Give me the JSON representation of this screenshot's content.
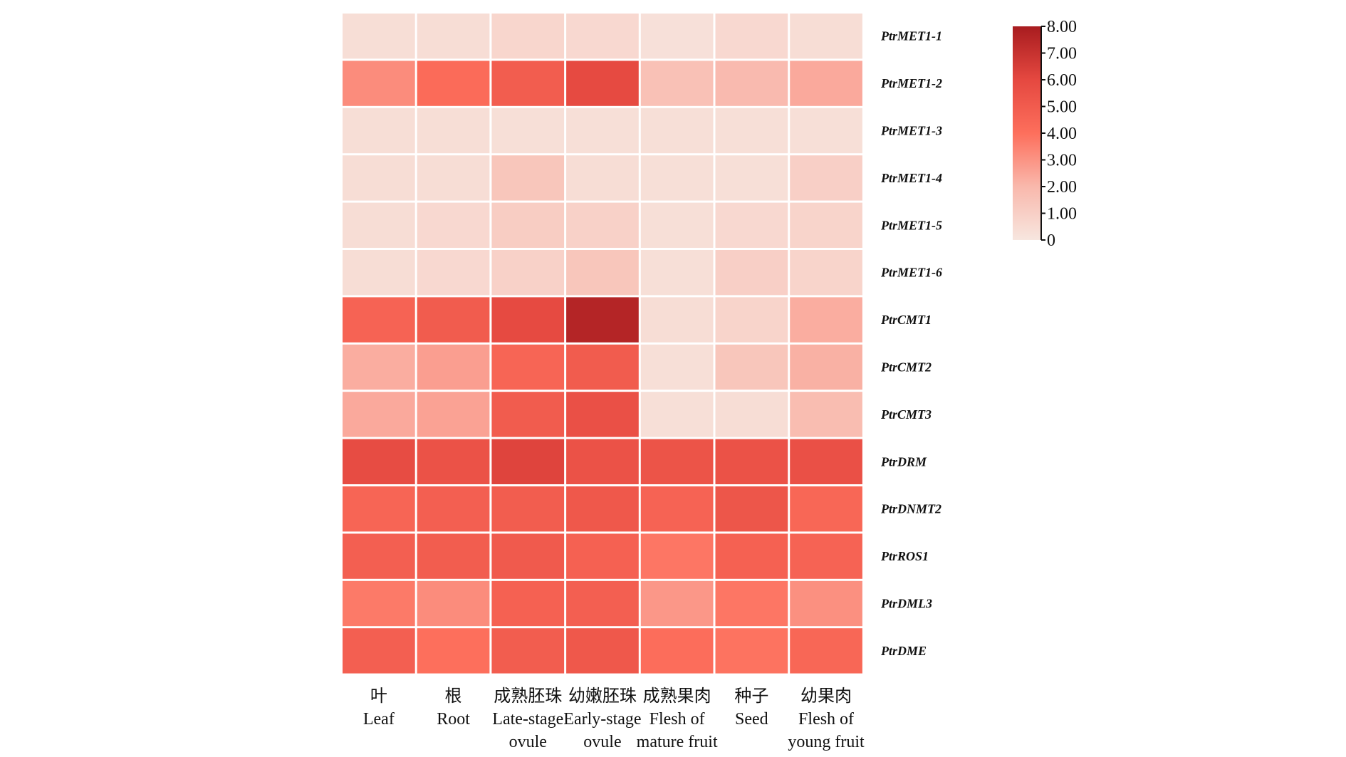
{
  "chart_data": {
    "type": "heatmap",
    "columns": [
      {
        "cn": "叶",
        "en": [
          "Leaf"
        ]
      },
      {
        "cn": "根",
        "en": [
          "Root"
        ]
      },
      {
        "cn": "成熟胚珠",
        "en": [
          "Late-stage",
          "ovule"
        ]
      },
      {
        "cn": "幼嫩胚珠",
        "en": [
          "Early-stage",
          "ovule"
        ]
      },
      {
        "cn": "成熟果肉",
        "en": [
          "Flesh of",
          "mature fruit"
        ]
      },
      {
        "cn": "种子",
        "en": [
          "Seed"
        ]
      },
      {
        "cn": "幼果肉",
        "en": [
          "Flesh of",
          "young fruit"
        ]
      }
    ],
    "rows": [
      "PtrMET1-1",
      "PtrMET1-2",
      "PtrMET1-3",
      "PtrMET1-4",
      "PtrMET1-5",
      "PtrMET1-6",
      "PtrCMT1",
      "PtrCMT2",
      "PtrCMT3",
      "PtrDRM",
      "PtrDNMT2",
      "PtrROS1",
      "PtrDML3",
      "PtrDME"
    ],
    "values": [
      [
        0.35,
        0.4,
        0.7,
        0.6,
        0.25,
        0.6,
        0.4
      ],
      [
        3.2,
        4.2,
        4.9,
        5.9,
        1.6,
        1.9,
        2.4
      ],
      [
        0.35,
        0.35,
        0.3,
        0.3,
        0.3,
        0.3,
        0.3
      ],
      [
        0.4,
        0.4,
        1.4,
        0.4,
        0.3,
        0.3,
        1.0
      ],
      [
        0.4,
        0.6,
        1.1,
        0.9,
        0.3,
        0.6,
        0.8
      ],
      [
        0.4,
        0.6,
        0.9,
        1.4,
        0.3,
        1.0,
        0.8
      ],
      [
        4.6,
        5.0,
        5.9,
        7.6,
        0.4,
        0.8,
        2.3
      ],
      [
        2.3,
        2.7,
        4.5,
        5.0,
        0.3,
        1.4,
        2.2
      ],
      [
        2.4,
        2.6,
        5.0,
        5.6,
        0.3,
        0.4,
        1.8
      ],
      [
        5.8,
        5.5,
        6.2,
        5.5,
        5.4,
        5.5,
        5.6
      ],
      [
        4.5,
        4.8,
        4.9,
        5.2,
        4.6,
        5.3,
        4.4
      ],
      [
        4.8,
        4.9,
        5.1,
        4.7,
        3.8,
        4.7,
        4.6
      ],
      [
        3.7,
        3.2,
        4.7,
        4.8,
        2.9,
        3.8,
        3.1
      ],
      [
        4.8,
        4.0,
        4.9,
        5.2,
        4.1,
        3.9,
        4.4
      ]
    ],
    "scale": {
      "min": 0,
      "max": 8,
      "ticks": [
        "0",
        "1.00",
        "2.00",
        "3.00",
        "4.00",
        "5.00",
        "6.00",
        "7.00",
        "8.00"
      ],
      "colors": [
        "#f7e6df",
        "#f9b8ac",
        "#fd6f5c",
        "#e54840",
        "#a81c1f"
      ]
    }
  }
}
